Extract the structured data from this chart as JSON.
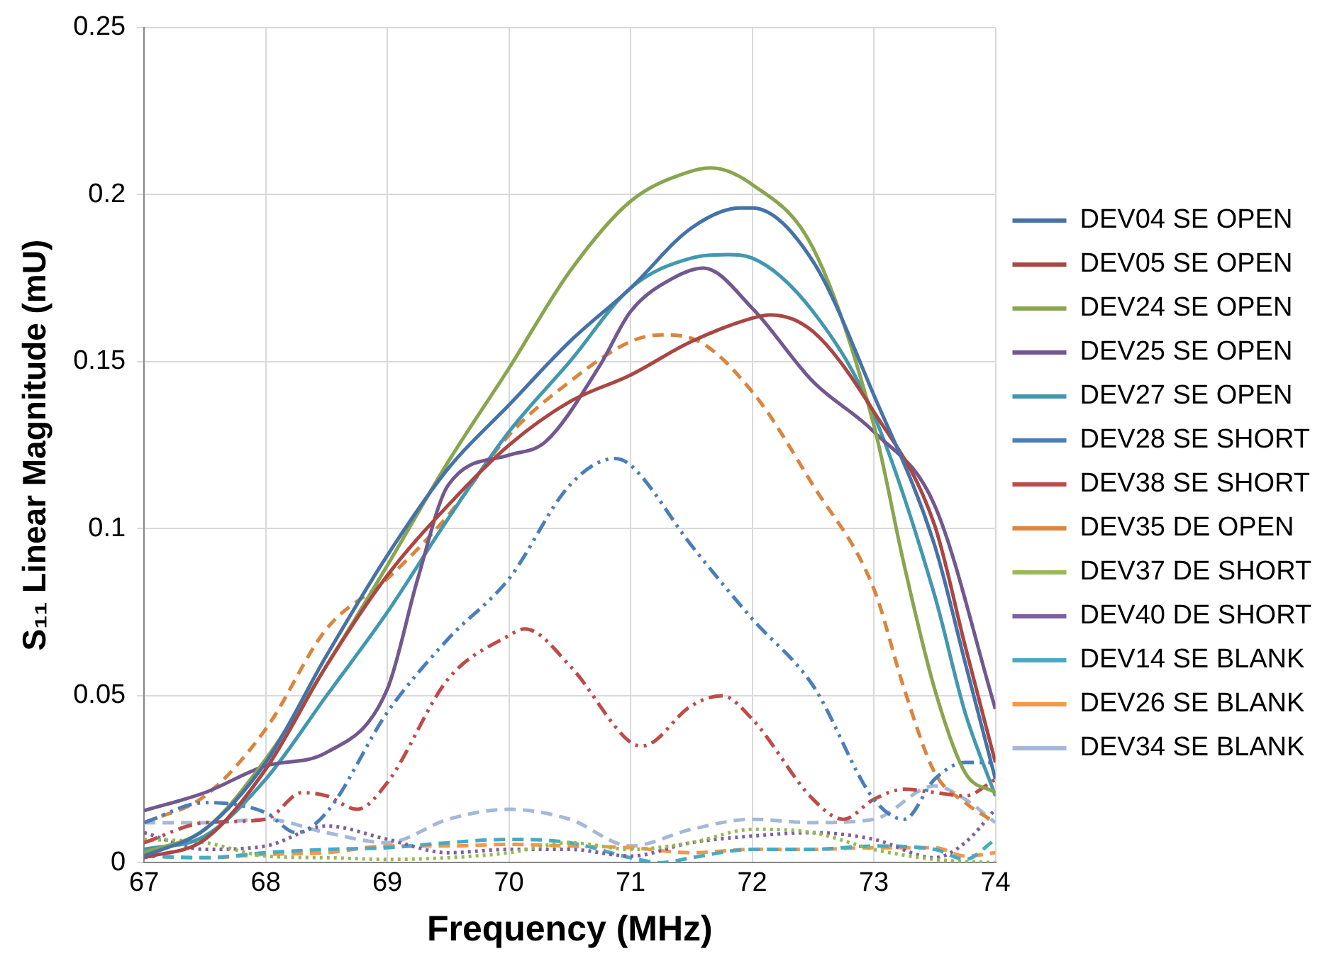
{
  "chart_data": {
    "type": "line",
    "xlabel": "Frequency (MHz)",
    "ylabel": "S₁₁ Linear Magnitude (mU)",
    "xlim": [
      67,
      74
    ],
    "xticks": [
      67,
      68,
      69,
      70,
      71,
      72,
      73,
      74
    ],
    "ylim": [
      0,
      0.25
    ],
    "yticks": [
      0,
      0.05,
      0.1,
      0.15,
      0.2,
      0.25
    ],
    "grid": true,
    "legend": "right",
    "marker": "none",
    "series": [
      {
        "name": "DEV04 SE OPEN",
        "color": "#4572a7",
        "line_style": "solid",
        "x": [
          67,
          67.5,
          68,
          68.5,
          69,
          69.5,
          70,
          70.5,
          71,
          71.5,
          71.9,
          72,
          72.5,
          73,
          73.5,
          73.75,
          74
        ],
        "values": [
          0.002,
          0.01,
          0.03,
          0.062,
          0.092,
          0.118,
          0.137,
          0.156,
          0.172,
          0.19,
          0.196,
          0.196,
          0.18,
          0.14,
          0.095,
          0.06,
          0.025
        ]
      },
      {
        "name": "DEV05 SE OPEN",
        "color": "#aa4643",
        "line_style": "solid",
        "x": [
          67,
          67.5,
          68,
          68.5,
          69,
          69.5,
          70,
          70.5,
          71,
          71.5,
          72,
          72.15,
          72.5,
          73,
          73.5,
          73.75,
          74
        ],
        "values": [
          0.0015,
          0.007,
          0.028,
          0.059,
          0.086,
          0.107,
          0.125,
          0.138,
          0.146,
          0.156,
          0.163,
          0.164,
          0.159,
          0.135,
          0.101,
          0.065,
          0.03
        ]
      },
      {
        "name": "DEV24 SE OPEN",
        "color": "#89a54e",
        "line_style": "solid",
        "x": [
          67,
          67.5,
          68,
          68.5,
          69,
          69.5,
          70,
          70.5,
          71,
          71.5,
          71.66,
          72,
          72.5,
          73,
          73.25,
          73.5,
          73.75,
          74
        ],
        "values": [
          0.003,
          0.01,
          0.031,
          0.059,
          0.089,
          0.12,
          0.148,
          0.177,
          0.198,
          0.207,
          0.208,
          0.203,
          0.184,
          0.131,
          0.089,
          0.052,
          0.027,
          0.021
        ]
      },
      {
        "name": "DEV25 SE OPEN",
        "color": "#71588f",
        "line_style": "solid",
        "x": [
          67,
          67.5,
          68,
          68.5,
          69,
          69.25,
          69.5,
          70,
          70.3,
          70.75,
          71,
          71.35,
          71.6,
          72,
          72.5,
          73,
          73.5,
          74
        ],
        "values": [
          0.0156,
          0.021,
          0.029,
          0.033,
          0.052,
          0.085,
          0.113,
          0.122,
          0.126,
          0.149,
          0.165,
          0.175,
          0.178,
          0.166,
          0.144,
          0.129,
          0.107,
          0.046
        ]
      },
      {
        "name": "DEV27 SE OPEN",
        "color": "#4198af",
        "line_style": "solid",
        "x": [
          67,
          67.5,
          68,
          68.5,
          69,
          69.5,
          70,
          70.5,
          71,
          71.5,
          71.8,
          72,
          72.5,
          73,
          73.5,
          73.75,
          74
        ],
        "values": [
          0.004,
          0.008,
          0.025,
          0.05,
          0.075,
          0.103,
          0.129,
          0.15,
          0.172,
          0.181,
          0.182,
          0.181,
          0.165,
          0.134,
          0.08,
          0.045,
          0.02
        ]
      },
      {
        "name": "DEV28 SE SHORT",
        "color": "#4a7ebb",
        "line_style": "dashdot",
        "x": [
          67,
          67.5,
          68,
          68.25,
          68.5,
          69,
          69.5,
          70,
          70.5,
          70.87,
          71,
          71.5,
          72,
          72.5,
          73,
          73.25,
          73.5,
          73.75,
          74
        ],
        "values": [
          0.012,
          0.018,
          0.015,
          0.009,
          0.015,
          0.045,
          0.067,
          0.085,
          0.113,
          0.121,
          0.119,
          0.095,
          0.073,
          0.053,
          0.019,
          0.013,
          0.025,
          0.03,
          0.03
        ]
      },
      {
        "name": "DEV38 SE SHORT",
        "color": "#be4b48",
        "line_style": "dashdot",
        "x": [
          67,
          67.5,
          68,
          68.3,
          68.5,
          68.75,
          69,
          69.5,
          70,
          70.13,
          70.5,
          71,
          71.1,
          71.5,
          71.75,
          72,
          72.5,
          72.75,
          73,
          73.25,
          73.5,
          73.75,
          74
        ],
        "values": [
          0.006,
          0.012,
          0.013,
          0.021,
          0.02,
          0.016,
          0.024,
          0.055,
          0.068,
          0.07,
          0.059,
          0.036,
          0.035,
          0.047,
          0.05,
          0.043,
          0.019,
          0.013,
          0.019,
          0.022,
          0.021,
          0.02,
          0.025
        ]
      },
      {
        "name": "DEV35 DE OPEN",
        "color": "#db843d",
        "line_style": "dashed",
        "x": [
          67,
          67.5,
          68,
          68.5,
          69,
          69.5,
          70,
          70.5,
          71,
          71.25,
          71.5,
          72,
          72.5,
          73,
          73.25,
          73.5,
          73.75,
          74
        ],
        "values": [
          0.012,
          0.02,
          0.04,
          0.07,
          0.085,
          0.104,
          0.128,
          0.144,
          0.156,
          0.158,
          0.157,
          0.141,
          0.113,
          0.082,
          0.052,
          0.027,
          0.018,
          0.012
        ]
      },
      {
        "name": "DEV37 DE SHORT",
        "color": "#98b954",
        "line_style": "dotted",
        "x": [
          67,
          67.5,
          68,
          68.5,
          69,
          69.5,
          70,
          70.5,
          71,
          71.5,
          72,
          72.5,
          73,
          73.5,
          74
        ],
        "values": [
          0.007,
          0.006,
          0.002,
          0.0015,
          0.001,
          0.0015,
          0.003,
          0.006,
          0.004,
          0.006,
          0.01,
          0.009,
          0.004,
          0.001,
          0
        ]
      },
      {
        "name": "DEV40 DE SHORT",
        "color": "#7d60a0",
        "line_style": "dotted",
        "x": [
          67,
          67.5,
          68,
          68.5,
          69,
          69.5,
          70,
          70.5,
          71,
          71.5,
          72,
          72.5,
          73,
          73.5,
          73.75,
          74
        ],
        "values": [
          0.009,
          0.004,
          0.005,
          0.011,
          0.007,
          0.003,
          0.004,
          0.004,
          0.002,
          0.006,
          0.008,
          0.009,
          0.007,
          0.0015,
          0.006,
          0.016
        ]
      },
      {
        "name": "DEV14 SE BLANK",
        "color": "#46aac5",
        "line_style": "dashed",
        "x": [
          67,
          67.5,
          68,
          68.5,
          69,
          69.5,
          70,
          70.5,
          71,
          71.25,
          71.5,
          72,
          72.5,
          73,
          73.5,
          73.75,
          74
        ],
        "values": [
          0.002,
          0.0015,
          0.003,
          0.004,
          0.0045,
          0.006,
          0.007,
          0.006,
          0.0015,
          0,
          0.0015,
          0.004,
          0.004,
          0.005,
          0.004,
          0.001,
          0.007
        ]
      },
      {
        "name": "DEV26 SE BLANK",
        "color": "#f79646",
        "line_style": "dashed",
        "x": [
          67,
          67.5,
          68,
          68.5,
          69,
          69.5,
          70,
          70.5,
          71,
          71.5,
          72,
          72.5,
          73,
          73.5,
          73.75,
          74
        ],
        "values": [
          0.002,
          0.0015,
          0.0025,
          0.003,
          0.005,
          0.005,
          0.0055,
          0.005,
          0.0045,
          0.003,
          0.004,
          0.004,
          0.0045,
          0.0045,
          0.002,
          0.003
        ]
      },
      {
        "name": "DEV34 SE BLANK",
        "color": "#a5b8d8",
        "line_style": "dashed",
        "x": [
          67,
          67.5,
          68,
          68.5,
          69,
          69.5,
          70,
          70.5,
          71,
          71.5,
          72,
          72.5,
          73,
          73.5,
          73.75,
          74
        ],
        "values": [
          0.012,
          0.012,
          0.013,
          0.009,
          0.006,
          0.013,
          0.016,
          0.013,
          0.005,
          0.01,
          0.013,
          0.012,
          0.013,
          0.023,
          0.019,
          0.012
        ]
      }
    ]
  }
}
